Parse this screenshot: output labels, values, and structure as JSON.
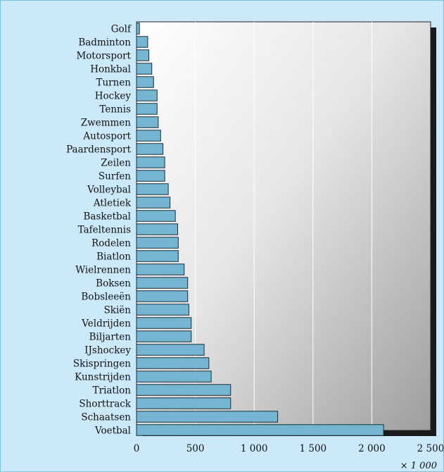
{
  "chart_data": {
    "type": "bar",
    "orientation": "horizontal",
    "categories": [
      "Golf",
      "Badminton",
      "Motorsport",
      "Honkbal",
      "Turnen",
      "Hockey",
      "Tennis",
      "Zwemmen",
      "Autosport",
      "Paardensport",
      "Zeilen",
      "Surfen",
      "Volleybal",
      "Atletiek",
      "Basketbal",
      "Tafeltennis",
      "Rodelen",
      "Biatlon",
      "Wielrennen",
      "Boksen",
      "Bobsleeën",
      "Skiën",
      "Veldrijden",
      "Biljarten",
      "IJshockey",
      "Skispringen",
      "Kunstrijden",
      "Triatlon",
      "Shorttrack",
      "Schaatsen",
      "Voetbal"
    ],
    "values": [
      25,
      95,
      105,
      130,
      145,
      175,
      175,
      185,
      205,
      225,
      240,
      240,
      270,
      285,
      330,
      350,
      355,
      355,
      405,
      435,
      435,
      445,
      465,
      465,
      575,
      615,
      635,
      800,
      800,
      1200,
      2100
    ],
    "xticks": [
      "0",
      "500",
      "1 000",
      "1 500",
      "2 000",
      "2 500"
    ],
    "xlim": [
      0,
      2500
    ],
    "unit_label": "× 1 000",
    "grid": "vertical lines",
    "colors": {
      "bar": "#74b6d2",
      "bar_edge": "#1a2f3a",
      "background": "#cbe9f8",
      "shadow": "#1a1a1a"
    }
  }
}
